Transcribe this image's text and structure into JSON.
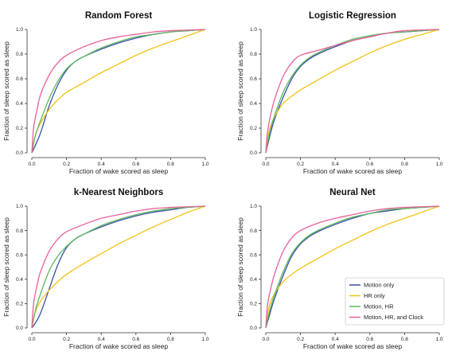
{
  "chart_data": [
    {
      "type": "line",
      "title": "Random Forest",
      "xlabel": "Fraction of wake scored as sleep",
      "ylabel": "Fraction of sleep scored as sleep",
      "xlim": [
        0,
        1
      ],
      "ylim": [
        0,
        1
      ],
      "xticks": [
        "0.0",
        "0.2",
        "0.4",
        "0.6",
        "0.8",
        "1.0"
      ],
      "yticks": [
        "0.0",
        "0.2",
        "0.4",
        "0.6",
        "0.8",
        "1.0"
      ],
      "grid": false,
      "series": [
        {
          "name": "Motion only",
          "color": "#3b4fa8",
          "points": [
            [
              0,
              0
            ],
            [
              0.02,
              0.06
            ],
            [
              0.05,
              0.16
            ],
            [
              0.1,
              0.38
            ],
            [
              0.15,
              0.55
            ],
            [
              0.2,
              0.67
            ],
            [
              0.25,
              0.74
            ],
            [
              0.3,
              0.78
            ],
            [
              0.4,
              0.84
            ],
            [
              0.5,
              0.89
            ],
            [
              0.6,
              0.93
            ],
            [
              0.7,
              0.96
            ],
            [
              0.8,
              0.98
            ],
            [
              0.9,
              0.99
            ],
            [
              1,
              1
            ]
          ]
        },
        {
          "name": "HR only",
          "color": "#f2c314",
          "points": [
            [
              0,
              0
            ],
            [
              0.02,
              0.14
            ],
            [
              0.05,
              0.24
            ],
            [
              0.1,
              0.35
            ],
            [
              0.15,
              0.43
            ],
            [
              0.2,
              0.49
            ],
            [
              0.3,
              0.57
            ],
            [
              0.4,
              0.65
            ],
            [
              0.5,
              0.72
            ],
            [
              0.6,
              0.79
            ],
            [
              0.7,
              0.85
            ],
            [
              0.8,
              0.9
            ],
            [
              0.9,
              0.95
            ],
            [
              1,
              1
            ]
          ]
        },
        {
          "name": "Motion, HR",
          "color": "#5cb85c",
          "points": [
            [
              0,
              0
            ],
            [
              0.02,
              0.14
            ],
            [
              0.05,
              0.26
            ],
            [
              0.1,
              0.44
            ],
            [
              0.15,
              0.58
            ],
            [
              0.2,
              0.68
            ],
            [
              0.25,
              0.74
            ],
            [
              0.3,
              0.78
            ],
            [
              0.4,
              0.85
            ],
            [
              0.5,
              0.9
            ],
            [
              0.6,
              0.94
            ],
            [
              0.7,
              0.96
            ],
            [
              0.8,
              0.98
            ],
            [
              0.9,
              0.99
            ],
            [
              1,
              1
            ]
          ]
        },
        {
          "name": "Motion, HR, and Clock",
          "color": "#e8609a",
          "points": [
            [
              0,
              0
            ],
            [
              0.01,
              0.2
            ],
            [
              0.03,
              0.35
            ],
            [
              0.05,
              0.47
            ],
            [
              0.1,
              0.63
            ],
            [
              0.15,
              0.73
            ],
            [
              0.2,
              0.79
            ],
            [
              0.3,
              0.86
            ],
            [
              0.4,
              0.91
            ],
            [
              0.5,
              0.94
            ],
            [
              0.6,
              0.96
            ],
            [
              0.7,
              0.98
            ],
            [
              0.8,
              0.99
            ],
            [
              1,
              1
            ]
          ]
        }
      ]
    },
    {
      "type": "line",
      "title": "Logistic Regression",
      "xlabel": "Fraction of wake scored as sleep",
      "ylabel": "Fraction of sleep scored as sleep",
      "xlim": [
        0,
        1
      ],
      "ylim": [
        0,
        1
      ],
      "xticks": [
        "0.0",
        "0.2",
        "0.4",
        "0.6",
        "0.8",
        "1.0"
      ],
      "yticks": [
        "0.0",
        "0.2",
        "0.4",
        "0.6",
        "0.8",
        "1.0"
      ],
      "grid": false,
      "series": [
        {
          "name": "Motion only",
          "color": "#3b4fa8",
          "points": [
            [
              0,
              0
            ],
            [
              0.02,
              0.12
            ],
            [
              0.05,
              0.27
            ],
            [
              0.1,
              0.45
            ],
            [
              0.15,
              0.6
            ],
            [
              0.2,
              0.7
            ],
            [
              0.25,
              0.76
            ],
            [
              0.3,
              0.8
            ],
            [
              0.4,
              0.86
            ],
            [
              0.5,
              0.91
            ],
            [
              0.6,
              0.94
            ],
            [
              0.7,
              0.97
            ],
            [
              0.8,
              0.98
            ],
            [
              0.9,
              0.99
            ],
            [
              1,
              1
            ]
          ]
        },
        {
          "name": "HR only",
          "color": "#f2c314",
          "points": [
            [
              0,
              0
            ],
            [
              0.02,
              0.18
            ],
            [
              0.05,
              0.29
            ],
            [
              0.1,
              0.4
            ],
            [
              0.15,
              0.46
            ],
            [
              0.2,
              0.51
            ],
            [
              0.3,
              0.59
            ],
            [
              0.4,
              0.67
            ],
            [
              0.5,
              0.74
            ],
            [
              0.6,
              0.81
            ],
            [
              0.7,
              0.87
            ],
            [
              0.8,
              0.92
            ],
            [
              0.9,
              0.96
            ],
            [
              1,
              1
            ]
          ]
        },
        {
          "name": "Motion, HR",
          "color": "#5cb85c",
          "points": [
            [
              0,
              0
            ],
            [
              0.02,
              0.15
            ],
            [
              0.05,
              0.3
            ],
            [
              0.1,
              0.49
            ],
            [
              0.15,
              0.62
            ],
            [
              0.2,
              0.71
            ],
            [
              0.25,
              0.77
            ],
            [
              0.3,
              0.81
            ],
            [
              0.4,
              0.87
            ],
            [
              0.5,
              0.92
            ],
            [
              0.6,
              0.95
            ],
            [
              0.7,
              0.97
            ],
            [
              0.8,
              0.98
            ],
            [
              0.9,
              0.99
            ],
            [
              1,
              1
            ]
          ]
        },
        {
          "name": "Motion, HR, and Clock",
          "color": "#e8609a",
          "points": [
            [
              0,
              0
            ],
            [
              0.01,
              0.17
            ],
            [
              0.03,
              0.32
            ],
            [
              0.05,
              0.43
            ],
            [
              0.1,
              0.62
            ],
            [
              0.15,
              0.73
            ],
            [
              0.2,
              0.79
            ],
            [
              0.3,
              0.83
            ],
            [
              0.4,
              0.87
            ],
            [
              0.5,
              0.91
            ],
            [
              0.6,
              0.94
            ],
            [
              0.7,
              0.97
            ],
            [
              0.8,
              0.99
            ],
            [
              1,
              1
            ]
          ]
        }
      ]
    },
    {
      "type": "line",
      "title": "k-Nearest Neighbors",
      "xlabel": "Fraction of wake scored as sleep",
      "ylabel": "Fraction of sleep scored as sleep",
      "xlim": [
        0,
        1
      ],
      "ylim": [
        0,
        1
      ],
      "xticks": [
        "0.0",
        "0.2",
        "0.4",
        "0.6",
        "0.8",
        "1.0"
      ],
      "yticks": [
        "0.0",
        "0.2",
        "0.4",
        "0.6",
        "0.8",
        "1.0"
      ],
      "grid": false,
      "series": [
        {
          "name": "Motion only",
          "color": "#3b4fa8",
          "points": [
            [
              0,
              0
            ],
            [
              0.02,
              0.04
            ],
            [
              0.05,
              0.12
            ],
            [
              0.1,
              0.32
            ],
            [
              0.15,
              0.52
            ],
            [
              0.2,
              0.66
            ],
            [
              0.25,
              0.73
            ],
            [
              0.3,
              0.77
            ],
            [
              0.4,
              0.83
            ],
            [
              0.5,
              0.88
            ],
            [
              0.6,
              0.92
            ],
            [
              0.7,
              0.95
            ],
            [
              0.8,
              0.97
            ],
            [
              0.9,
              0.99
            ],
            [
              1,
              1
            ]
          ]
        },
        {
          "name": "HR only",
          "color": "#f2c314",
          "points": [
            [
              0,
              0
            ],
            [
              0.02,
              0.13
            ],
            [
              0.05,
              0.22
            ],
            [
              0.1,
              0.31
            ],
            [
              0.15,
              0.38
            ],
            [
              0.2,
              0.44
            ],
            [
              0.3,
              0.53
            ],
            [
              0.4,
              0.61
            ],
            [
              0.5,
              0.69
            ],
            [
              0.6,
              0.76
            ],
            [
              0.7,
              0.83
            ],
            [
              0.8,
              0.89
            ],
            [
              0.9,
              0.95
            ],
            [
              1,
              1
            ]
          ]
        },
        {
          "name": "Motion, HR",
          "color": "#5cb85c",
          "points": [
            [
              0,
              0
            ],
            [
              0.02,
              0.14
            ],
            [
              0.05,
              0.28
            ],
            [
              0.1,
              0.47
            ],
            [
              0.15,
              0.59
            ],
            [
              0.2,
              0.67
            ],
            [
              0.25,
              0.73
            ],
            [
              0.3,
              0.77
            ],
            [
              0.4,
              0.84
            ],
            [
              0.5,
              0.89
            ],
            [
              0.6,
              0.93
            ],
            [
              0.7,
              0.96
            ],
            [
              0.8,
              0.98
            ],
            [
              0.9,
              0.99
            ],
            [
              1,
              1
            ]
          ]
        },
        {
          "name": "Motion, HR, and Clock",
          "color": "#e8609a",
          "points": [
            [
              0,
              0
            ],
            [
              0.01,
              0.2
            ],
            [
              0.03,
              0.35
            ],
            [
              0.05,
              0.46
            ],
            [
              0.1,
              0.63
            ],
            [
              0.15,
              0.73
            ],
            [
              0.2,
              0.79
            ],
            [
              0.3,
              0.85
            ],
            [
              0.4,
              0.9
            ],
            [
              0.5,
              0.93
            ],
            [
              0.6,
              0.96
            ],
            [
              0.7,
              0.98
            ],
            [
              0.8,
              0.99
            ],
            [
              1,
              1
            ]
          ]
        }
      ]
    },
    {
      "type": "line",
      "title": "Neural Net",
      "xlabel": "Fraction of wake scored as sleep",
      "ylabel": "Fraction of sleep scored as sleep",
      "xlim": [
        0,
        1
      ],
      "ylim": [
        0,
        1
      ],
      "xticks": [
        "0.0",
        "0.2",
        "0.4",
        "0.6",
        "0.8",
        "1.0"
      ],
      "yticks": [
        "0.0",
        "0.2",
        "0.4",
        "0.6",
        "0.8",
        "1.0"
      ],
      "grid": false,
      "legend": "bottom-right",
      "series": [
        {
          "name": "Motion only",
          "color": "#3b4fa8",
          "points": [
            [
              0,
              0
            ],
            [
              0.02,
              0.1
            ],
            [
              0.05,
              0.24
            ],
            [
              0.1,
              0.43
            ],
            [
              0.15,
              0.59
            ],
            [
              0.2,
              0.69
            ],
            [
              0.25,
              0.75
            ],
            [
              0.3,
              0.79
            ],
            [
              0.4,
              0.85
            ],
            [
              0.5,
              0.9
            ],
            [
              0.6,
              0.94
            ],
            [
              0.7,
              0.96
            ],
            [
              0.8,
              0.98
            ],
            [
              0.9,
              0.99
            ],
            [
              1,
              1
            ]
          ]
        },
        {
          "name": "HR only",
          "color": "#f2c314",
          "points": [
            [
              0,
              0
            ],
            [
              0.02,
              0.18
            ],
            [
              0.05,
              0.28
            ],
            [
              0.1,
              0.38
            ],
            [
              0.15,
              0.44
            ],
            [
              0.2,
              0.49
            ],
            [
              0.3,
              0.57
            ],
            [
              0.4,
              0.65
            ],
            [
              0.5,
              0.72
            ],
            [
              0.6,
              0.79
            ],
            [
              0.7,
              0.85
            ],
            [
              0.8,
              0.9
            ],
            [
              0.9,
              0.95
            ],
            [
              1,
              1
            ]
          ]
        },
        {
          "name": "Motion, HR",
          "color": "#5cb85c",
          "points": [
            [
              0,
              0
            ],
            [
              0.02,
              0.13
            ],
            [
              0.05,
              0.27
            ],
            [
              0.1,
              0.46
            ],
            [
              0.15,
              0.61
            ],
            [
              0.2,
              0.7
            ],
            [
              0.25,
              0.76
            ],
            [
              0.3,
              0.8
            ],
            [
              0.4,
              0.86
            ],
            [
              0.5,
              0.91
            ],
            [
              0.6,
              0.94
            ],
            [
              0.7,
              0.97
            ],
            [
              0.8,
              0.98
            ],
            [
              0.9,
              0.99
            ],
            [
              1,
              1
            ]
          ]
        },
        {
          "name": "Motion, HR, and Clock",
          "color": "#e8609a",
          "points": [
            [
              0,
              0
            ],
            [
              0.01,
              0.19
            ],
            [
              0.03,
              0.33
            ],
            [
              0.05,
              0.44
            ],
            [
              0.1,
              0.63
            ],
            [
              0.15,
              0.74
            ],
            [
              0.2,
              0.8
            ],
            [
              0.3,
              0.86
            ],
            [
              0.4,
              0.9
            ],
            [
              0.5,
              0.93
            ],
            [
              0.6,
              0.96
            ],
            [
              0.7,
              0.98
            ],
            [
              0.8,
              0.99
            ],
            [
              1,
              1
            ]
          ]
        }
      ]
    }
  ]
}
